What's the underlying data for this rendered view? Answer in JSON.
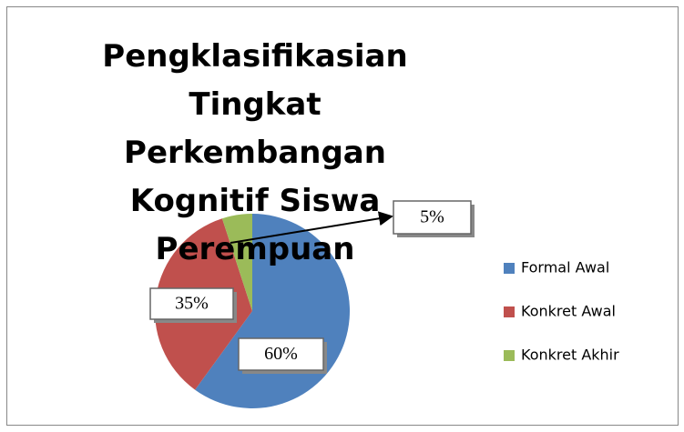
{
  "chart_data": {
    "type": "pie",
    "title": "Pengklasifikasian Tingkat Perkembangan Kognitif Siswa Perempuan",
    "categories": [
      "Formal Awal",
      "Konkret Awal",
      "Konkret Akhir"
    ],
    "values": [
      60,
      35,
      5
    ],
    "value_labels": [
      "60%",
      "35%",
      "5%"
    ],
    "colors": [
      "#4f81bd",
      "#c0504d",
      "#9bbb59"
    ],
    "legend": "right"
  }
}
